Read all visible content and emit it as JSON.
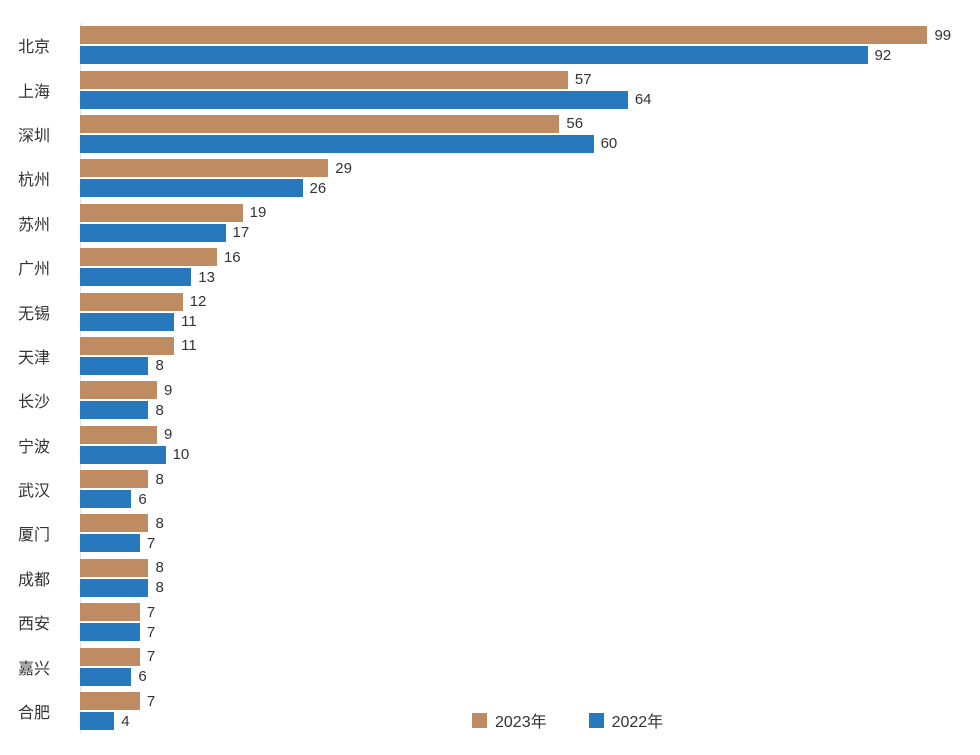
{
  "chart_data": {
    "type": "bar",
    "orientation": "horizontal",
    "title": "",
    "xlabel": "",
    "ylabel": "",
    "xlim": [
      0,
      100
    ],
    "grid": false,
    "value_labels": true,
    "legend_position": "bottom",
    "axis_line_color": "#dde3e8",
    "label_color": "#333333",
    "categories": [
      "北京",
      "上海",
      "深圳",
      "杭州",
      "苏州",
      "广州",
      "无锡",
      "天津",
      "长沙",
      "宁波",
      "武汉",
      "厦门",
      "成都",
      "西安",
      "嘉兴",
      "合肥"
    ],
    "series": [
      {
        "name": "2023年",
        "color": "#be8b62",
        "values": [
          99,
          57,
          56,
          29,
          19,
          16,
          12,
          11,
          9,
          9,
          8,
          8,
          8,
          7,
          7,
          7
        ]
      },
      {
        "name": "2022年",
        "color": "#2878be",
        "values": [
          92,
          64,
          60,
          26,
          17,
          13,
          11,
          8,
          8,
          10,
          6,
          7,
          8,
          7,
          6,
          4
        ]
      }
    ]
  }
}
